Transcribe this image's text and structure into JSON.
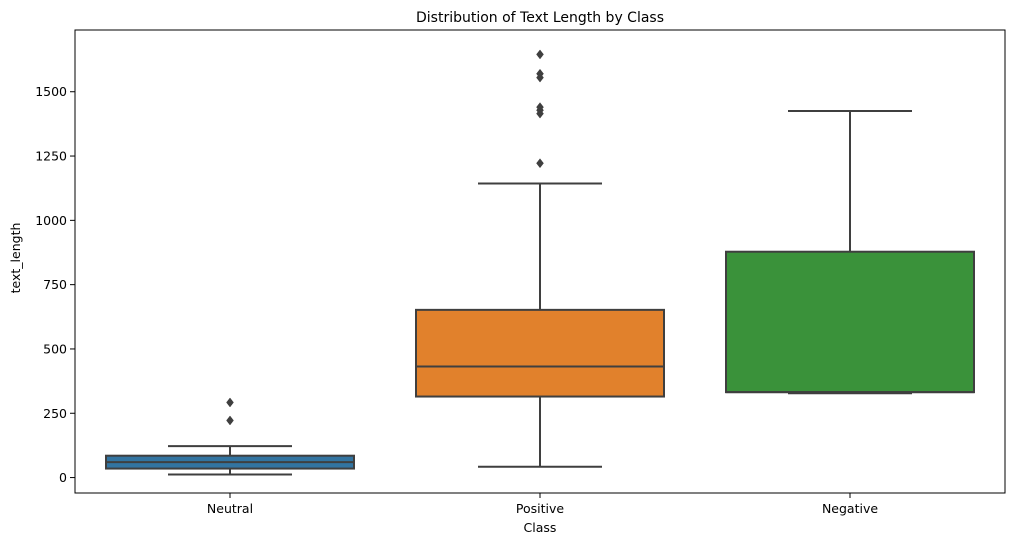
{
  "chart_data": {
    "type": "box",
    "title": "Distribution of Text Length by Class",
    "xlabel": "Class",
    "ylabel": "text_length",
    "ylim": [
      -60,
      1740
    ],
    "yticks": [
      0,
      250,
      500,
      750,
      1000,
      1250,
      1500
    ],
    "grid": false,
    "categories": [
      "Neutral",
      "Positive",
      "Negative"
    ],
    "boxes": [
      {
        "category": "Neutral",
        "color": "#3274a1",
        "whisker_low": 12,
        "q1": 35,
        "median": 60,
        "q3": 85,
        "whisker_high": 122,
        "outliers": [
          222,
          292
        ]
      },
      {
        "category": "Positive",
        "color": "#e1812c",
        "whisker_low": 42,
        "q1": 315,
        "median": 432,
        "q3": 652,
        "whisker_high": 1143,
        "outliers": [
          1222,
          1415,
          1428,
          1440,
          1555,
          1570,
          1645
        ]
      },
      {
        "category": "Negative",
        "color": "#3a923a",
        "whisker_low": 328,
        "q1": 332,
        "median": 332,
        "q3": 878,
        "whisker_high": 1425,
        "outliers": []
      }
    ],
    "line_color": "#3f3f3f"
  }
}
